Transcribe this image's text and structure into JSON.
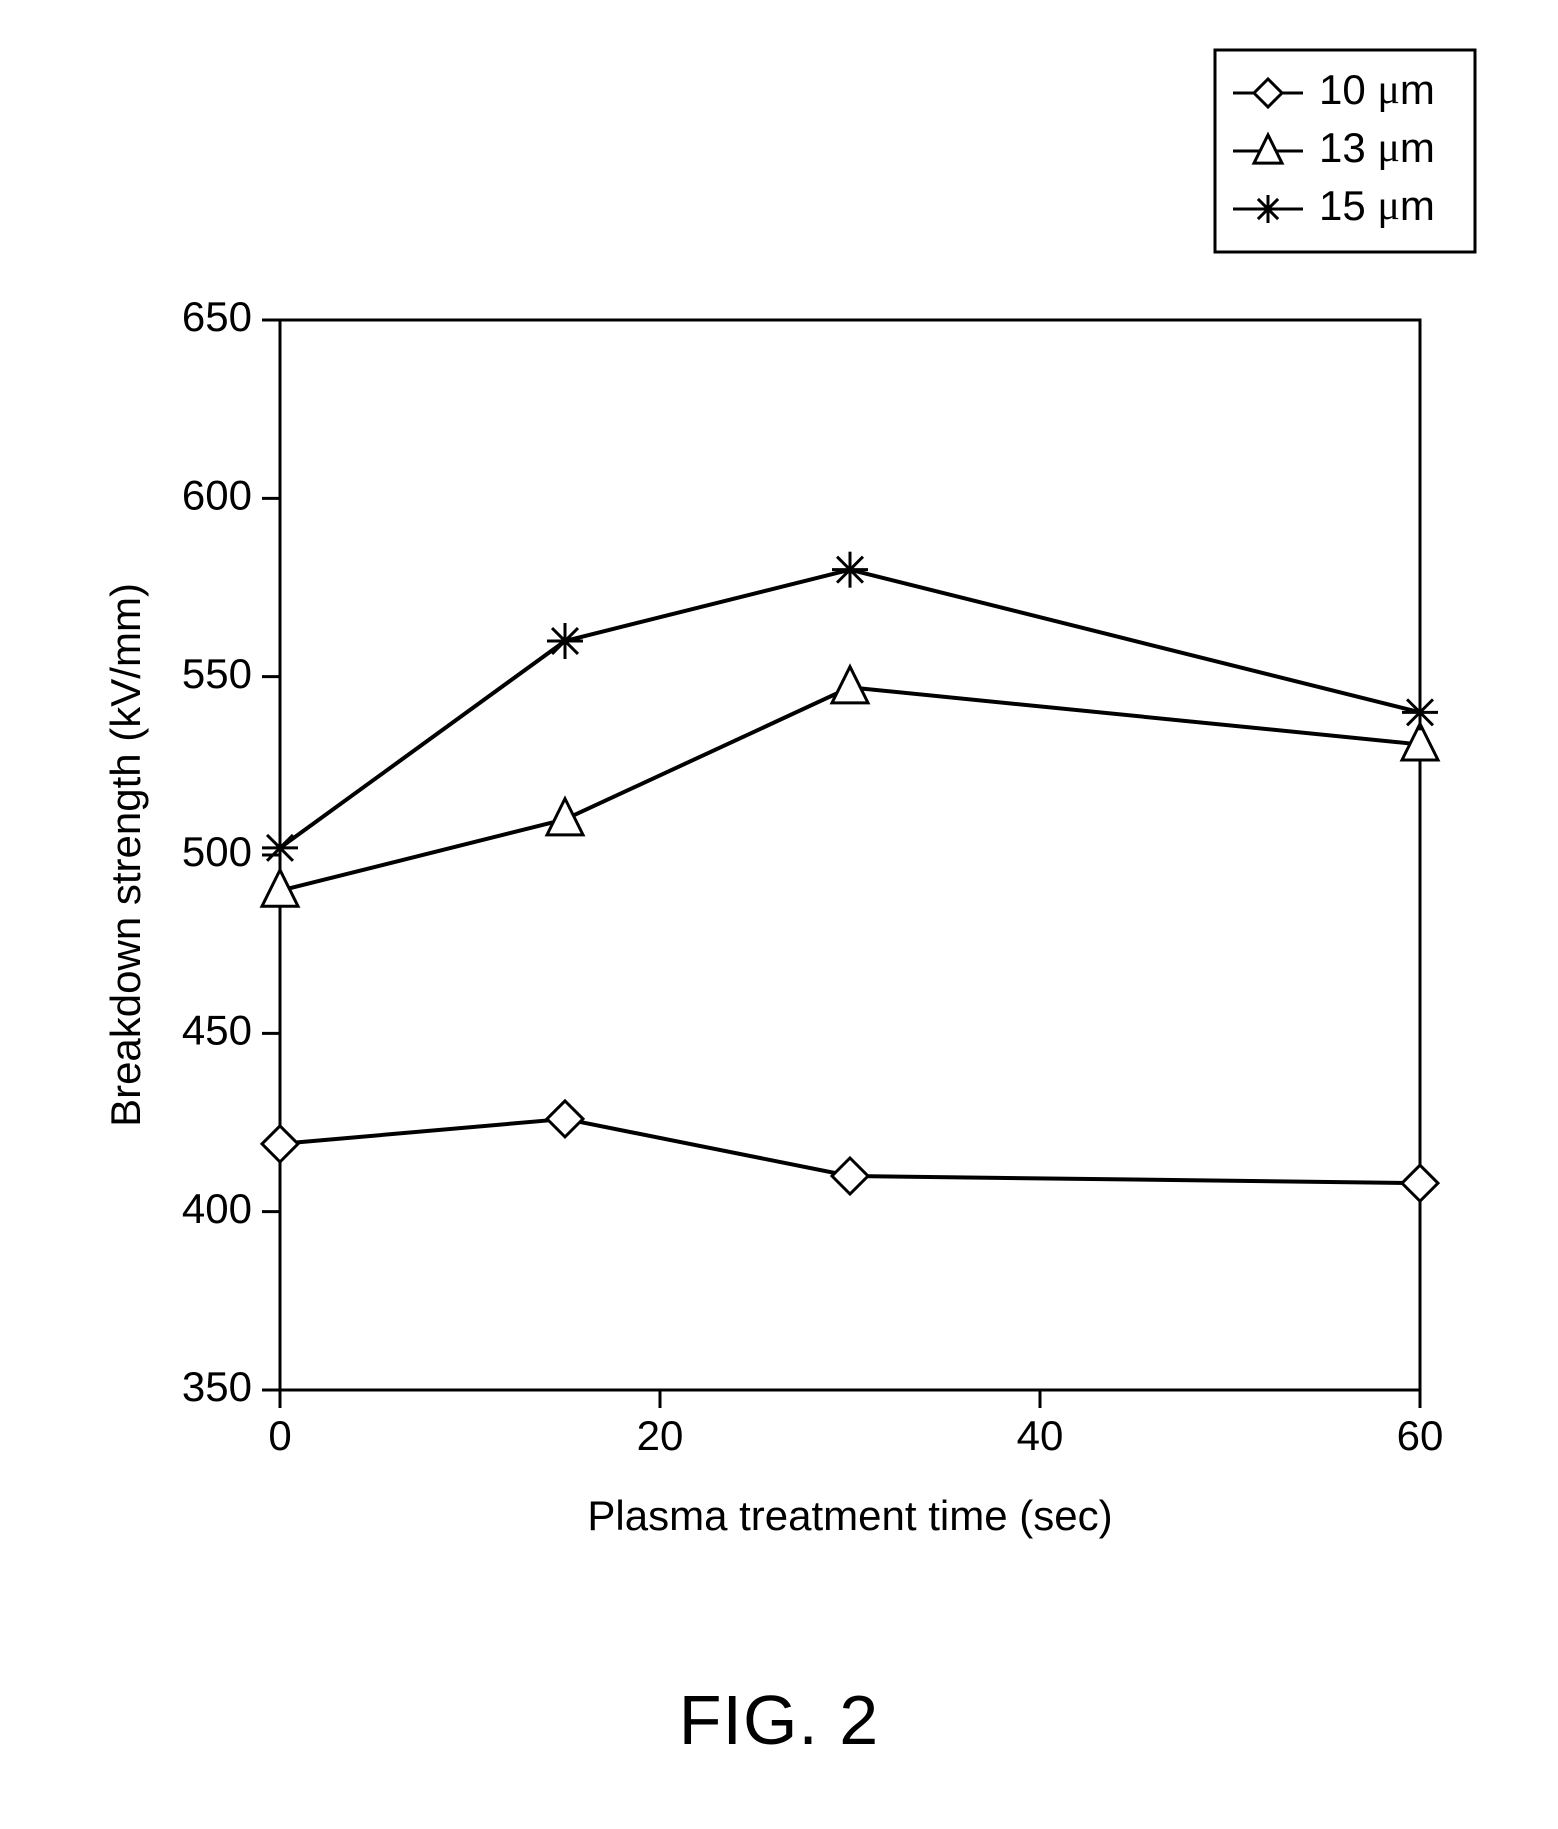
{
  "chart": {
    "type": "line",
    "xlabel": "Plasma treatment time (sec)",
    "ylabel": "Breakdown strength (kV/mm)",
    "label_fontsize": 42,
    "tick_fontsize": 42,
    "legend_fontsize": 42,
    "xlim": [
      0,
      60
    ],
    "ylim": [
      350,
      650
    ],
    "xticks": [
      0,
      20,
      40,
      60
    ],
    "yticks": [
      350,
      400,
      450,
      500,
      550,
      600,
      650
    ],
    "grid": false,
    "background_color": "#ffffff",
    "axis_color": "#000000",
    "axis_linewidth": 3,
    "line_linewidth": 4,
    "marker_size": 18,
    "series": [
      {
        "label": "10 μm",
        "marker": "diamond-open",
        "color": "#000000",
        "x": [
          0,
          15,
          30,
          60
        ],
        "y": [
          419,
          426,
          410,
          408
        ]
      },
      {
        "label": "13 μm",
        "marker": "triangle-open",
        "color": "#000000",
        "x": [
          0,
          15,
          30,
          60
        ],
        "y": [
          490,
          510,
          547,
          531
        ]
      },
      {
        "label": "15 μm",
        "marker": "asterisk",
        "color": "#000000",
        "x": [
          0,
          15,
          30,
          60
        ],
        "y": [
          502,
          560,
          580,
          540
        ]
      }
    ],
    "legend": {
      "position": "outside-top-right",
      "border_color": "#000000",
      "border_width": 3,
      "entries": [
        {
          "label_part1": "10 ",
          "label_part2": "μ",
          "label_part3": "m",
          "marker": "diamond-open"
        },
        {
          "label_part1": "13 ",
          "label_part2": "μ",
          "label_part3": "m",
          "marker": "triangle-open"
        },
        {
          "label_part1": "15 ",
          "label_part2": "μ",
          "label_part3": "m",
          "marker": "asterisk"
        }
      ]
    }
  },
  "caption": "FIG. 2"
}
